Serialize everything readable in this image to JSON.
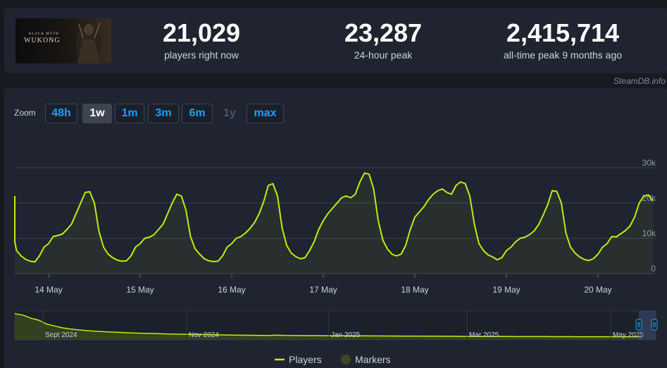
{
  "game": {
    "thumb_small": "BLACK MYTH",
    "thumb_title": "WUKONG"
  },
  "stats": [
    {
      "value": "21,029",
      "label": "players right now"
    },
    {
      "value": "23,287",
      "label": "24-hour peak"
    },
    {
      "value": "2,415,714",
      "label": "all-time peak 9 months ago"
    }
  ],
  "credit": "SteamDB.info",
  "zoom": {
    "label": "Zoom",
    "buttons": [
      {
        "label": "48h",
        "state": "normal"
      },
      {
        "label": "1w",
        "state": "active"
      },
      {
        "label": "1m",
        "state": "normal"
      },
      {
        "label": "3m",
        "state": "normal"
      },
      {
        "label": "6m",
        "state": "normal"
      },
      {
        "label": "1y",
        "state": "disabled"
      },
      {
        "label": "max",
        "state": "normal"
      }
    ]
  },
  "colors": {
    "line": "#beee11",
    "grid": "#3a4250",
    "panel": "#1f2430",
    "background": "#171a21",
    "accent": "#1a9fff"
  },
  "chart_data": {
    "type": "line",
    "series": [
      {
        "name": "Players",
        "x": [
          13.5,
          13.55,
          13.6,
          13.65,
          13.7,
          13.75,
          13.8,
          13.85,
          13.9,
          13.95,
          14.0,
          14.05,
          14.1,
          14.15,
          14.2,
          14.25,
          14.3,
          14.35,
          14.4,
          14.45,
          14.5,
          14.55,
          14.6,
          14.65,
          14.7,
          14.75,
          14.8,
          14.85,
          14.9,
          14.95,
          15.0,
          15.05,
          15.1,
          15.15,
          15.2,
          15.25,
          15.3,
          15.35,
          15.4,
          15.45,
          15.5,
          15.55,
          15.6,
          15.65,
          15.7,
          15.75,
          15.8,
          15.85,
          15.9,
          15.95,
          16.0,
          16.05,
          16.1,
          16.15,
          16.2,
          16.25,
          16.3,
          16.35,
          16.4,
          16.45,
          16.5,
          16.55,
          16.6,
          16.65,
          16.7,
          16.75,
          16.8,
          16.85,
          16.9,
          16.95,
          17.0,
          17.05,
          17.1,
          17.15,
          17.2,
          17.25,
          17.3,
          17.35,
          17.4,
          17.45,
          17.5,
          17.55,
          17.6,
          17.65,
          17.7,
          17.75,
          17.8,
          17.85,
          17.9,
          17.95,
          18.0,
          18.05,
          18.1,
          18.15,
          18.2,
          18.25,
          18.3,
          18.35,
          18.4,
          18.45,
          18.5,
          18.55,
          18.6,
          18.65,
          18.7,
          18.75,
          18.8,
          18.85,
          18.9,
          18.95,
          19.0,
          19.05,
          19.1,
          19.15,
          19.2,
          19.25,
          19.3,
          19.35,
          19.4,
          19.45,
          19.5,
          19.55,
          19.6,
          19.65,
          19.7,
          19.75,
          19.8,
          19.85,
          19.9,
          19.95,
          20.0,
          20.05,
          20.1,
          20.15,
          20.2,
          20.25,
          20.3,
          20.35,
          20.4,
          20.45,
          20.5,
          20.55,
          20.6
        ],
        "values": [
          22000,
          14000,
          9000,
          6500,
          5000,
          4000,
          3500,
          3300,
          5000,
          7500,
          8500,
          10500,
          10800,
          11200,
          12500,
          14000,
          17000,
          20000,
          23000,
          23200,
          20000,
          12000,
          7500,
          5500,
          4500,
          3800,
          3500,
          3600,
          5000,
          7500,
          8500,
          10000,
          10300,
          11000,
          12500,
          14000,
          17000,
          20000,
          22500,
          22000,
          18000,
          10500,
          7000,
          5500,
          4200,
          3600,
          3400,
          3500,
          5000,
          7500,
          8500,
          10000,
          10500,
          11500,
          12800,
          14500,
          17000,
          20500,
          25000,
          25500,
          22000,
          13000,
          8000,
          5800,
          4800,
          4200,
          4500,
          6500,
          9000,
          12500,
          15000,
          17000,
          18500,
          20000,
          21500,
          22000,
          21500,
          22500,
          26000,
          28500,
          28200,
          24000,
          15000,
          9500,
          7000,
          5500,
          5000,
          5500,
          8000,
          12500,
          16000,
          17500,
          19000,
          21000,
          22500,
          23500,
          24000,
          23000,
          22500,
          25000,
          26000,
          25500,
          22000,
          14000,
          8500,
          6500,
          5300,
          4700,
          3900,
          4500,
          6500,
          7500,
          9000,
          10000,
          10300,
          11000,
          12000,
          13800,
          16500,
          19500,
          23500,
          23300,
          20000,
          11500,
          7500,
          5800,
          4700,
          4000,
          3700,
          4200,
          5500,
          7500,
          8500,
          10500,
          10400,
          11300,
          12200,
          13500,
          16000,
          20000,
          22000,
          22300,
          20500
        ]
      }
    ],
    "x_ticks": [
      "14 May",
      "15 May",
      "16 May",
      "17 May",
      "18 May",
      "19 May",
      "20 May"
    ],
    "y_ticks": [
      "0",
      "10k",
      "20k",
      "30k"
    ],
    "ylim": [
      0,
      30000
    ],
    "grid": true,
    "navigator": {
      "labels": [
        "Sept 2024",
        "Nov 2024",
        "Jan 2025",
        "Mar 2025",
        "May 2025"
      ],
      "values": [
        2415714,
        2200000,
        1700000,
        1400000,
        900000,
        700000,
        520000,
        420000,
        350000,
        300000,
        260000,
        230000,
        210000,
        190000,
        170000,
        150000,
        140000,
        130000,
        120000,
        110000,
        100000,
        95000,
        90000,
        85000,
        80000,
        75000,
        70000,
        65000,
        60000,
        58000,
        55000,
        52000,
        50000,
        60000,
        52000,
        48000,
        46000,
        45000,
        44000,
        43000,
        42000,
        41000,
        40000,
        39000,
        38000,
        37000,
        36000,
        35000,
        34000,
        33000,
        32000,
        31000,
        30000,
        29000,
        28000,
        27000,
        26000,
        25000,
        25000,
        24000,
        24000,
        23000,
        23000,
        22000,
        22000,
        21000,
        21000,
        21000,
        20000,
        20000,
        20000,
        19000,
        19000,
        19000,
        19000,
        18000,
        18000,
        18000,
        18000,
        18000
      ]
    },
    "legend": [
      "Players",
      "Markers"
    ]
  }
}
